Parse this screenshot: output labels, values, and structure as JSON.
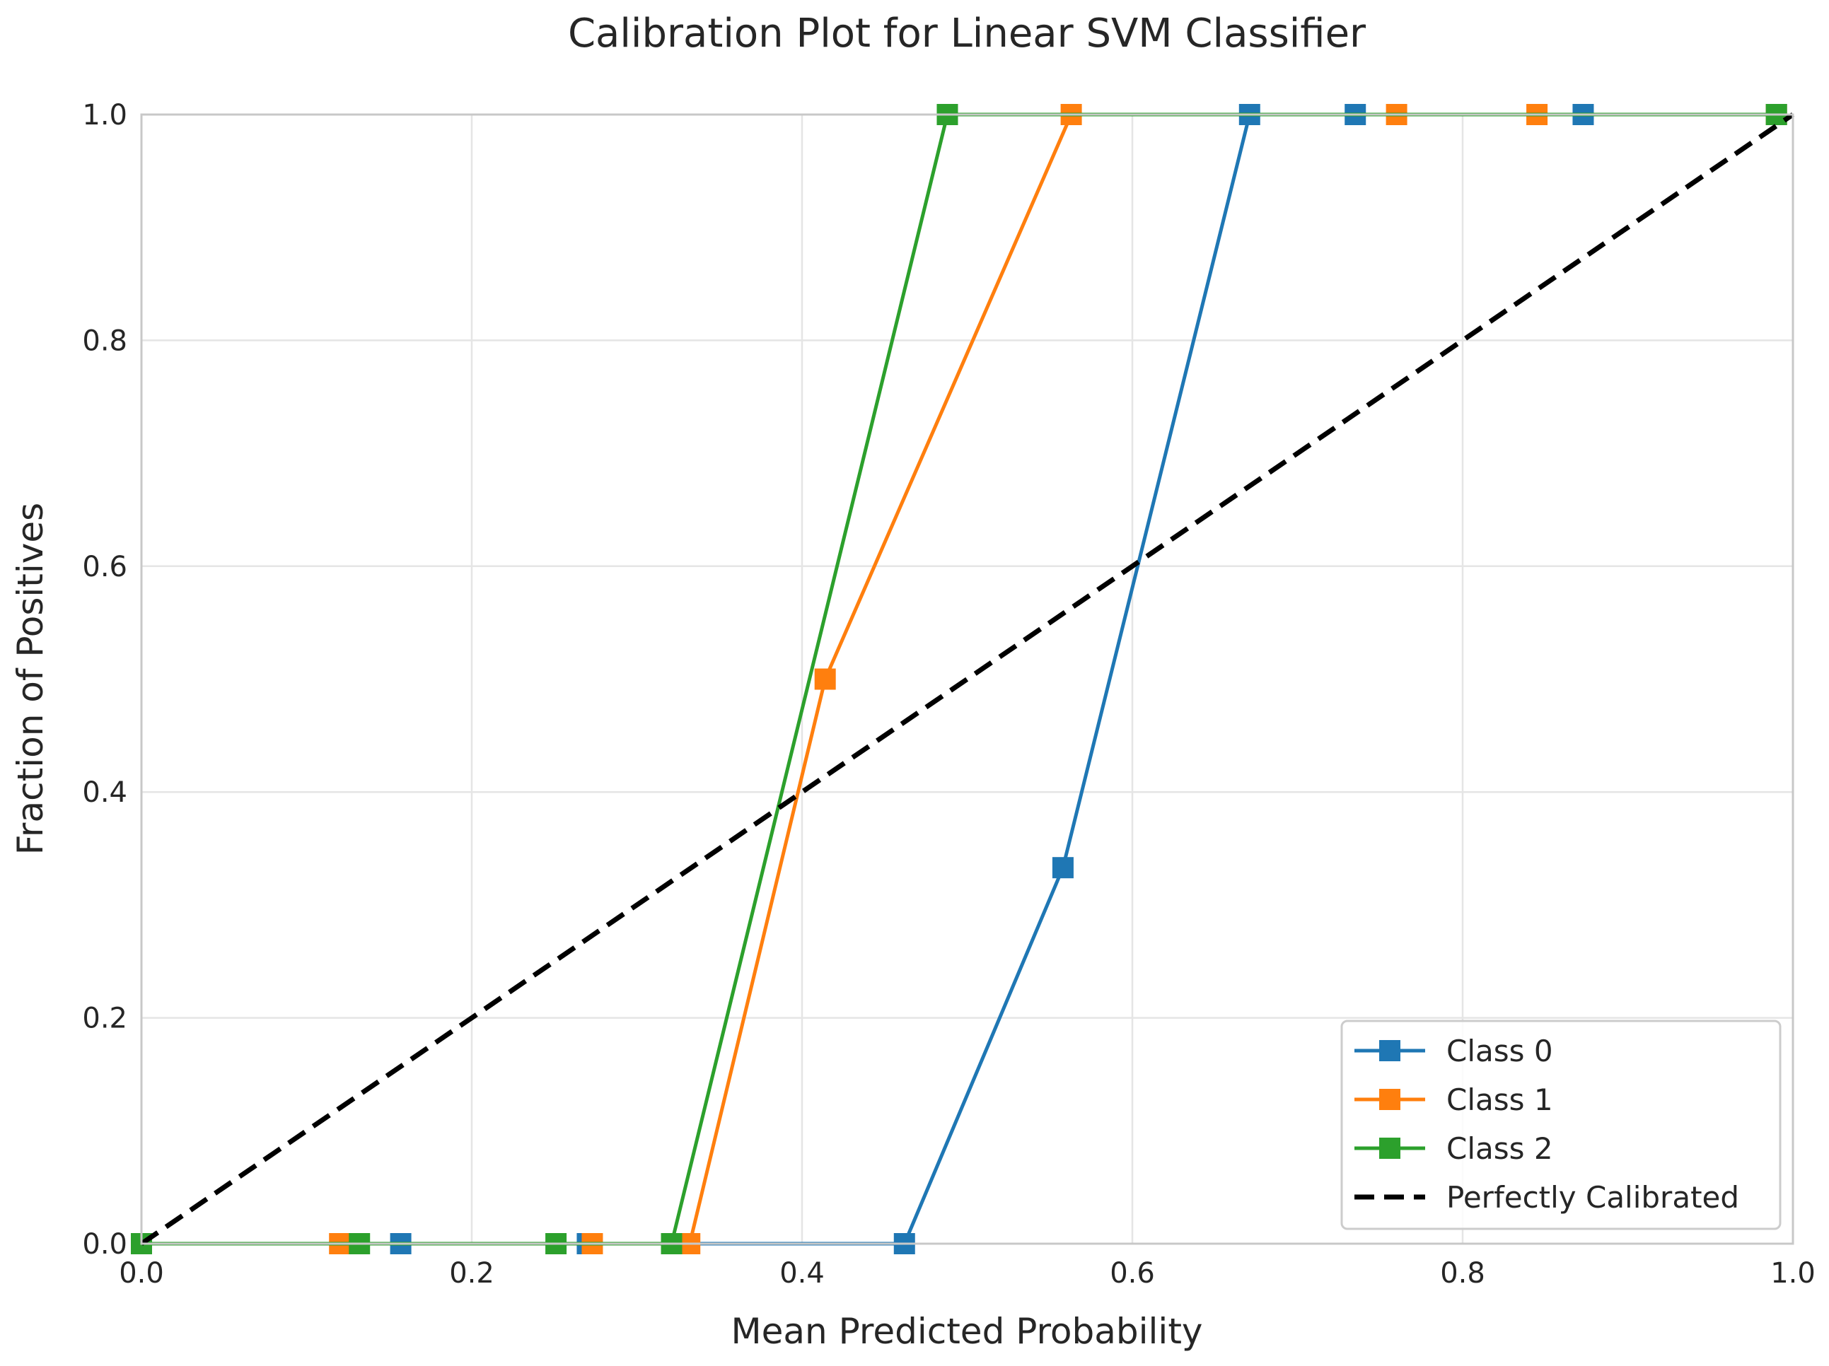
{
  "chart_data": {
    "type": "line",
    "title": "Calibration Plot for Linear SVM Classifier",
    "xlabel": "Mean Predicted Probability",
    "ylabel": "Fraction of Positives",
    "xlim": [
      0.0,
      1.0
    ],
    "ylim": [
      0.0,
      1.0
    ],
    "xticks": [
      "0.0",
      "0.2",
      "0.4",
      "0.6",
      "0.8",
      "1.0"
    ],
    "yticks": [
      "0.0",
      "0.2",
      "0.4",
      "0.6",
      "0.8",
      "1.0"
    ],
    "grid": true,
    "legend_position": "lower-right",
    "series": [
      {
        "name": "Class 0",
        "color": "#1f77b4",
        "marker": "square",
        "x": [
          0.0,
          0.157,
          0.27,
          0.462,
          0.558,
          0.671,
          0.735,
          0.873,
          0.99
        ],
        "y": [
          0.0,
          0.0,
          0.0,
          0.0,
          0.333,
          1.0,
          1.0,
          1.0,
          1.0
        ]
      },
      {
        "name": "Class 1",
        "color": "#ff7f0e",
        "marker": "square",
        "x": [
          0.0,
          0.12,
          0.273,
          0.332,
          0.414,
          0.563,
          0.76,
          0.845,
          0.99
        ],
        "y": [
          0.0,
          0.0,
          0.0,
          0.0,
          0.5,
          1.0,
          1.0,
          1.0,
          1.0
        ]
      },
      {
        "name": "Class 2",
        "color": "#2ca02c",
        "marker": "square",
        "x": [
          0.0,
          0.132,
          0.251,
          0.321,
          0.488,
          0.99
        ],
        "y": [
          0.0,
          0.0,
          0.0,
          0.0,
          1.0,
          1.0
        ]
      },
      {
        "name": "Perfectly Calibrated",
        "color": "#000000",
        "marker": "none",
        "style": "dashed",
        "x": [
          0.0,
          1.0
        ],
        "y": [
          0.0,
          1.0
        ]
      }
    ]
  }
}
